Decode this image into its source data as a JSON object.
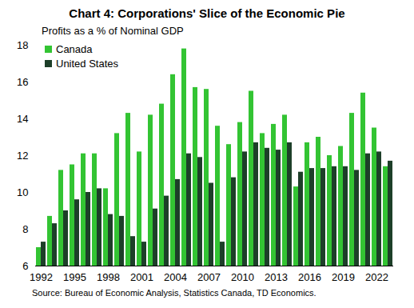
{
  "chart_data": {
    "type": "bar",
    "title": "Chart 4: Corporations' Slice of the Economic Pie",
    "subtitle": "Profits as a % of Nominal GDP",
    "caption": "Source: Bureau of Economic Analysis, Statistics Canada, TD Economics.",
    "categories": [
      "1992",
      null,
      null,
      "1995",
      null,
      null,
      "1998",
      null,
      null,
      "2001",
      null,
      null,
      "2004",
      null,
      null,
      "2007",
      null,
      null,
      "2010",
      null,
      null,
      "2013",
      null,
      null,
      "2016",
      null,
      null,
      "2019",
      null,
      null,
      "2022",
      null
    ],
    "series": [
      {
        "name": "Canada",
        "color": "#33c433",
        "values": [
          7.0,
          8.7,
          11.2,
          11.5,
          12.1,
          12.1,
          10.2,
          13.2,
          14.3,
          12.2,
          14.2,
          14.8,
          16.4,
          17.8,
          15.7,
          15.6,
          13.6,
          12.6,
          13.8,
          15.5,
          13.2,
          13.7,
          14.2,
          10.3,
          12.7,
          13.0,
          12.0,
          12.5,
          14.3,
          15.4,
          13.5,
          11.4
        ]
      },
      {
        "name": "United States",
        "color": "#1d3f29",
        "values": [
          7.3,
          8.3,
          9.0,
          9.6,
          10.0,
          10.2,
          8.8,
          8.7,
          7.6,
          7.3,
          9.1,
          9.8,
          10.7,
          12.1,
          11.9,
          10.5,
          7.3,
          10.8,
          12.2,
          12.7,
          12.4,
          12.3,
          12.7,
          11.1,
          11.3,
          11.3,
          11.4,
          11.4,
          11.2,
          12.1,
          12.2,
          11.7
        ]
      }
    ],
    "ylim": [
      6,
      18
    ],
    "yticks": [
      6,
      8,
      10,
      12,
      14,
      16,
      18
    ],
    "legend": "top-left"
  }
}
